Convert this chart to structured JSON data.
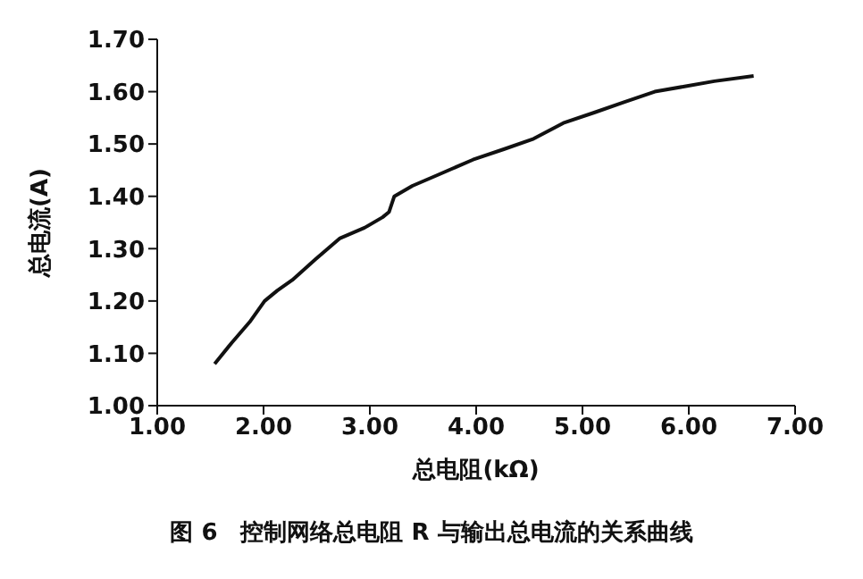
{
  "chart_data": {
    "type": "line",
    "title": "图 6　控制网络总电阻 R 与输出总电流的关系曲线",
    "xlabel": "总电阻(kΩ)",
    "ylabel": "总电流(A)",
    "xlim": [
      1,
      7
    ],
    "xticks": [
      {
        "value": 1,
        "label": "1.00"
      },
      {
        "value": 2,
        "label": "2.00"
      },
      {
        "value": 3,
        "label": "3.00"
      },
      {
        "value": 4,
        "label": "4.00"
      },
      {
        "value": 5,
        "label": "5.00"
      },
      {
        "value": 6,
        "label": "6.00"
      },
      {
        "value": 7,
        "label": "7.00"
      }
    ],
    "ylim": [
      1,
      1.7
    ],
    "yticks": [
      {
        "value": 1,
        "label": "1.00"
      },
      {
        "value": 1.1,
        "label": "1.10"
      },
      {
        "value": 1.2,
        "label": "1.20"
      },
      {
        "value": 1.3,
        "label": "1.30"
      },
      {
        "value": 1.4,
        "label": "1.40"
      },
      {
        "value": 1.5,
        "label": "1.50"
      },
      {
        "value": 1.6,
        "label": "1.60"
      },
      {
        "value": 1.7,
        "label": "1.70"
      }
    ],
    "grid": false,
    "legend": false,
    "marker": "none",
    "line_style": "solid",
    "x": [
      1.54,
      1.7,
      1.87,
      2.01,
      2.13,
      2.27,
      2.49,
      2.72,
      2.95,
      3.12,
      3.18,
      3.23,
      3.4,
      3.63,
      3.97,
      4.26,
      4.54,
      4.82,
      5.11,
      5.39,
      5.68,
      5.96,
      6.24,
      6.61
    ],
    "series": [
      {
        "color": "#111111",
        "values": [
          1.08,
          1.12,
          1.16,
          1.2,
          1.22,
          1.24,
          1.28,
          1.32,
          1.34,
          1.36,
          1.37,
          1.4,
          1.42,
          1.44,
          1.47,
          1.49,
          1.51,
          1.54,
          1.56,
          1.58,
          1.6,
          1.61,
          1.62,
          1.63
        ]
      }
    ]
  }
}
